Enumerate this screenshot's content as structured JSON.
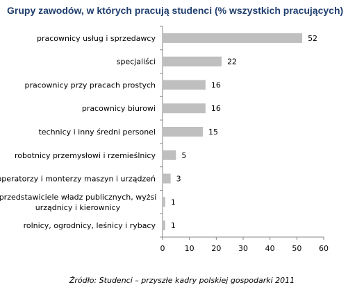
{
  "chart_data": {
    "type": "bar",
    "orientation": "horizontal",
    "title": "Grupy zawodów, w których pracują studenci (% wszystkich pracujących)",
    "categories": [
      [
        "pracownicy usług i sprzedawcy"
      ],
      [
        "specjaliści"
      ],
      [
        "pracownicy przy pracach prostych"
      ],
      [
        "pracownicy biurowi"
      ],
      [
        "technicy i inny średni personel"
      ],
      [
        "robotnicy przemysłowi i rzemieślnicy"
      ],
      [
        "operatorzy i monterzy maszyn i urządzeń"
      ],
      [
        "przedstawiciele władz publicznych, wyżsi",
        "urządnicy i kierownicy"
      ],
      [
        "rolnicy, ogrodnicy, leśnicy i rybacy"
      ]
    ],
    "values": [
      52,
      22,
      16,
      16,
      15,
      5,
      3,
      1,
      1
    ],
    "xlim": [
      0,
      60
    ],
    "xticks": [
      0,
      10,
      20,
      30,
      40,
      50,
      60
    ],
    "grid": false,
    "legend": "none",
    "bar_color": "#bfbfbf",
    "title_color": "#1f3e6e"
  },
  "source": "Źródło: Studenci – przyszłe kadry polskiej gospodarki 2011"
}
